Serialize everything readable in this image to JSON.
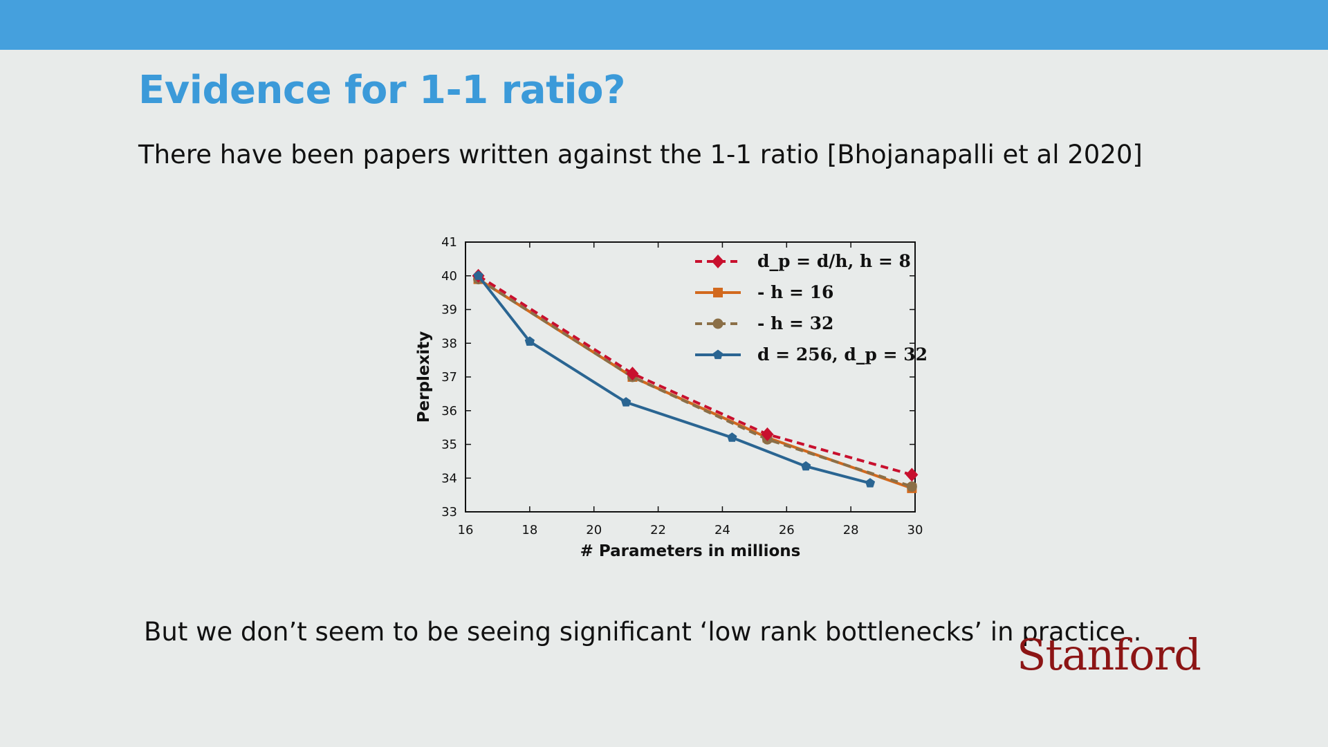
{
  "slide": {
    "title": "Evidence for 1-1 ratio?",
    "subtitle": "There have been papers written against the 1-1 ratio [Bhojanapalli et al 2020]",
    "caption": "But we don’t seem to be seeing significant ‘low rank bottlenecks’ in practice..",
    "logo_text": "Stanford"
  },
  "colors": {
    "header_bar": "#45a0dd",
    "title": "#3b9ad9",
    "logo": "#8c1515"
  },
  "chart_data": {
    "type": "line",
    "title": "",
    "xlabel": "# Parameters in millions",
    "ylabel": "Perplexity",
    "xlim": [
      16,
      30
    ],
    "ylim": [
      33,
      41
    ],
    "x_ticks": [
      16,
      18,
      20,
      22,
      24,
      26,
      28,
      30
    ],
    "y_ticks": [
      33,
      34,
      35,
      36,
      37,
      38,
      39,
      40,
      41
    ],
    "grid": false,
    "legend_position": "top-right",
    "series": [
      {
        "name": "d_p = d/h, h = 8",
        "color": "#c8102e",
        "line_style": "dashed",
        "marker": "diamond",
        "x": [
          16.4,
          21.2,
          25.4,
          29.9
        ],
        "y": [
          40.0,
          37.1,
          35.3,
          34.1
        ]
      },
      {
        "name": "- h = 16",
        "color": "#d2691e",
        "line_style": "solid",
        "marker": "square",
        "x": [
          16.4,
          21.2,
          25.4,
          29.9
        ],
        "y": [
          39.9,
          37.0,
          35.2,
          33.7
        ]
      },
      {
        "name": "- h = 32",
        "color": "#8b6f47",
        "line_style": "dashed",
        "marker": "circle",
        "x": [
          16.4,
          21.2,
          25.4,
          29.9
        ],
        "y": [
          39.9,
          37.0,
          35.15,
          33.75
        ]
      },
      {
        "name": "d = 256, d_p = 32",
        "color": "#2a6592",
        "line_style": "solid",
        "marker": "pentagon",
        "x": [
          16.4,
          18.0,
          21.0,
          24.3,
          26.6,
          28.6
        ],
        "y": [
          40.0,
          38.05,
          36.25,
          35.2,
          34.35,
          33.85
        ]
      }
    ]
  }
}
